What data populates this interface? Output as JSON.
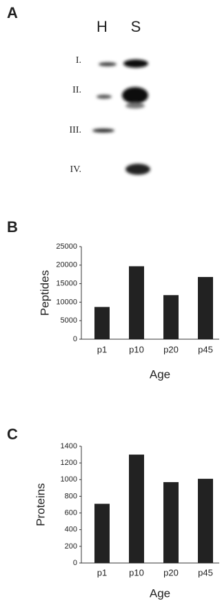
{
  "blot": {
    "panel": "A",
    "columns": [
      "H",
      "S"
    ],
    "rows": [
      "I.",
      "II.",
      "III.",
      "IV."
    ]
  },
  "chart_data": [
    {
      "type": "bar",
      "panel": "B",
      "ylabel": "Peptides",
      "xlabel": "Age",
      "categories": [
        "p1",
        "p10",
        "p20",
        "p45"
      ],
      "values": [
        8700,
        19700,
        11900,
        16800
      ],
      "color": "#222222",
      "ylim": [
        0,
        25000
      ],
      "yticks": [
        0,
        5000,
        10000,
        15000,
        20000,
        25000
      ]
    },
    {
      "type": "bar",
      "panel": "C",
      "ylabel": "Proteins",
      "xlabel": "Age",
      "categories": [
        "p1",
        "p10",
        "p20",
        "p45"
      ],
      "values": [
        710,
        1300,
        970,
        1010
      ],
      "color": "#222222",
      "ylim": [
        0,
        1400
      ],
      "yticks": [
        0,
        200,
        400,
        600,
        800,
        1000,
        1200,
        1400
      ]
    }
  ]
}
